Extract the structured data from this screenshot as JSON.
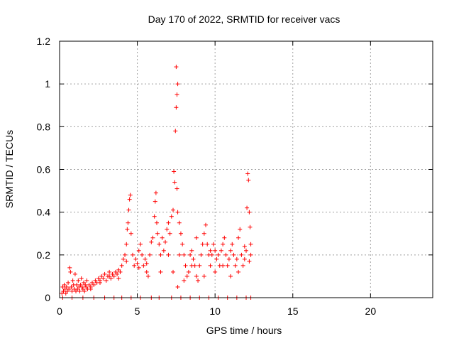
{
  "chart_data": {
    "type": "scatter",
    "title": "Day 170 of 2022, SRMTID for receiver vacs",
    "xlabel": "GPS time / hours",
    "ylabel": "SRMTID / TECUs",
    "xlim": [
      0,
      24
    ],
    "ylim": [
      0,
      1.2
    ],
    "xticks": [
      0,
      5,
      10,
      15,
      20
    ],
    "xtick_labels": [
      "0",
      "5",
      "10",
      "15",
      "20"
    ],
    "yticks": [
      0,
      0.2,
      0.4,
      0.6,
      0.8,
      1,
      1.2
    ],
    "ytick_labels": [
      "0",
      "0.2",
      "0.4",
      "0.6",
      "0.8",
      "1",
      "1.2"
    ],
    "grid": true,
    "marker": "+",
    "color": "#ff0000",
    "series": [
      {
        "name": "SRMTID",
        "points": [
          [
            0.15,
            0.02
          ],
          [
            0.2,
            0.05
          ],
          [
            0.25,
            0.03
          ],
          [
            0.3,
            0.06
          ],
          [
            0.35,
            0.04
          ],
          [
            0.4,
            0.02
          ],
          [
            0.45,
            0.05
          ],
          [
            0.5,
            0.03
          ],
          [
            0.55,
            0.07
          ],
          [
            0.6,
            0.04
          ],
          [
            0.65,
            0.14
          ],
          [
            0.7,
            0.12
          ],
          [
            0.75,
            0.05
          ],
          [
            0.8,
            0.03
          ],
          [
            0.85,
            0.08
          ],
          [
            0.9,
            0.06
          ],
          [
            0.95,
            0.04
          ],
          [
            1.0,
            0.11
          ],
          [
            1.05,
            0.03
          ],
          [
            1.1,
            0.06
          ],
          [
            1.15,
            0.04
          ],
          [
            1.2,
            0.08
          ],
          [
            1.25,
            0.05
          ],
          [
            1.3,
            0.03
          ],
          [
            1.35,
            0.06
          ],
          [
            1.4,
            0.09
          ],
          [
            1.45,
            0.05
          ],
          [
            1.5,
            0.04
          ],
          [
            1.55,
            0.07
          ],
          [
            1.6,
            0.03
          ],
          [
            1.65,
            0.06
          ],
          [
            1.7,
            0.05
          ],
          [
            1.75,
            0.08
          ],
          [
            1.8,
            0.04
          ],
          [
            1.9,
            0.06
          ],
          [
            2.0,
            0.05
          ],
          [
            2.1,
            0.07
          ],
          [
            2.2,
            0.06
          ],
          [
            2.3,
            0.08
          ],
          [
            2.4,
            0.07
          ],
          [
            2.5,
            0.09
          ],
          [
            2.6,
            0.08
          ],
          [
            2.7,
            0.1
          ],
          [
            2.8,
            0.09
          ],
          [
            2.9,
            0.11
          ],
          [
            3.0,
            0.08
          ],
          [
            3.1,
            0.1
          ],
          [
            3.2,
            0.12
          ],
          [
            3.3,
            0.09
          ],
          [
            3.4,
            0.11
          ],
          [
            3.5,
            0.1
          ],
          [
            3.6,
            0.12
          ],
          [
            3.7,
            0.11
          ],
          [
            3.8,
            0.13
          ],
          [
            3.9,
            0.12
          ],
          [
            4.0,
            0.15
          ],
          [
            4.1,
            0.18
          ],
          [
            4.2,
            0.2
          ],
          [
            4.3,
            0.25
          ],
          [
            4.35,
            0.32
          ],
          [
            4.4,
            0.35
          ],
          [
            4.45,
            0.41
          ],
          [
            4.5,
            0.46
          ],
          [
            4.55,
            0.48
          ],
          [
            4.6,
            0.3
          ],
          [
            4.7,
            0.2
          ],
          [
            4.8,
            0.15
          ],
          [
            4.9,
            0.18
          ],
          [
            5.0,
            0.16
          ],
          [
            5.1,
            0.22
          ],
          [
            5.2,
            0.25
          ],
          [
            5.3,
            0.2
          ],
          [
            5.4,
            0.15
          ],
          [
            5.5,
            0.18
          ],
          [
            5.6,
            0.12
          ],
          [
            5.7,
            0.1
          ],
          [
            5.8,
            0.2
          ],
          [
            5.9,
            0.26
          ],
          [
            6.0,
            0.28
          ],
          [
            6.1,
            0.38
          ],
          [
            6.15,
            0.45
          ],
          [
            6.2,
            0.49
          ],
          [
            6.25,
            0.35
          ],
          [
            6.3,
            0.3
          ],
          [
            6.4,
            0.25
          ],
          [
            6.5,
            0.2
          ],
          [
            6.6,
            0.28
          ],
          [
            6.7,
            0.22
          ],
          [
            6.8,
            0.26
          ],
          [
            6.9,
            0.32
          ],
          [
            7.0,
            0.35
          ],
          [
            7.1,
            0.3
          ],
          [
            7.2,
            0.38
          ],
          [
            7.3,
            0.41
          ],
          [
            7.35,
            0.59
          ],
          [
            7.4,
            0.54
          ],
          [
            7.45,
            0.78
          ],
          [
            7.5,
            0.89
          ],
          [
            7.55,
            0.95
          ],
          [
            7.6,
            1.0
          ],
          [
            7.5,
            1.08
          ],
          [
            7.55,
            0.51
          ],
          [
            7.6,
            0.4
          ],
          [
            7.7,
            0.35
          ],
          [
            7.8,
            0.3
          ],
          [
            7.9,
            0.25
          ],
          [
            8.0,
            0.2
          ],
          [
            8.1,
            0.15
          ],
          [
            8.2,
            0.1
          ],
          [
            8.3,
            0.12
          ],
          [
            8.4,
            0.2
          ],
          [
            8.5,
            0.22
          ],
          [
            8.6,
            0.18
          ],
          [
            8.7,
            0.15
          ],
          [
            8.8,
            0.1
          ],
          [
            8.9,
            0.08
          ],
          [
            9.0,
            0.15
          ],
          [
            9.1,
            0.2
          ],
          [
            9.2,
            0.25
          ],
          [
            9.3,
            0.3
          ],
          [
            9.4,
            0.34
          ],
          [
            9.5,
            0.25
          ],
          [
            9.6,
            0.2
          ],
          [
            9.7,
            0.15
          ],
          [
            9.8,
            0.2
          ],
          [
            9.9,
            0.25
          ],
          [
            10.0,
            0.22
          ],
          [
            10.1,
            0.18
          ],
          [
            10.2,
            0.2
          ],
          [
            10.3,
            0.15
          ],
          [
            10.4,
            0.22
          ],
          [
            10.5,
            0.25
          ],
          [
            10.6,
            0.28
          ],
          [
            10.7,
            0.2
          ],
          [
            10.8,
            0.15
          ],
          [
            10.9,
            0.18
          ],
          [
            11.0,
            0.22
          ],
          [
            11.1,
            0.25
          ],
          [
            11.2,
            0.2
          ],
          [
            11.3,
            0.15
          ],
          [
            11.4,
            0.18
          ],
          [
            11.5,
            0.28
          ],
          [
            11.6,
            0.32
          ],
          [
            11.7,
            0.2
          ],
          [
            11.8,
            0.15
          ],
          [
            11.9,
            0.18
          ],
          [
            12.0,
            0.22
          ],
          [
            12.05,
            0.42
          ],
          [
            12.1,
            0.58
          ],
          [
            12.15,
            0.55
          ],
          [
            12.2,
            0.4
          ],
          [
            12.25,
            0.33
          ],
          [
            12.3,
            0.25
          ],
          [
            12.3,
            0.2
          ],
          [
            0.2,
            0.0
          ],
          [
            0.8,
            0.0
          ],
          [
            1.5,
            0.0
          ],
          [
            2.2,
            0.0
          ],
          [
            2.9,
            0.0
          ],
          [
            3.5,
            0.0
          ],
          [
            4.0,
            0.0
          ],
          [
            4.6,
            0.0
          ],
          [
            5.2,
            0.0
          ],
          [
            5.9,
            0.0
          ],
          [
            6.4,
            0.0
          ],
          [
            7.2,
            0.0
          ],
          [
            7.8,
            0.0
          ],
          [
            8.4,
            0.0
          ],
          [
            9.0,
            0.0
          ],
          [
            9.6,
            0.0
          ],
          [
            10.2,
            0.0
          ],
          [
            10.8,
            0.0
          ],
          [
            11.4,
            0.0
          ],
          [
            12.0,
            0.0
          ],
          [
            12.3,
            0.0
          ],
          [
            2.0,
            0.04
          ],
          [
            2.6,
            0.07
          ],
          [
            3.2,
            0.1
          ],
          [
            3.8,
            0.09
          ],
          [
            4.3,
            0.17
          ],
          [
            5.1,
            0.14
          ],
          [
            5.6,
            0.16
          ],
          [
            6.5,
            0.12
          ],
          [
            7.0,
            0.2
          ],
          [
            7.3,
            0.12
          ],
          [
            7.6,
            0.05
          ],
          [
            7.7,
            0.2
          ],
          [
            8.0,
            0.08
          ],
          [
            8.5,
            0.15
          ],
          [
            8.8,
            0.28
          ],
          [
            9.3,
            0.1
          ],
          [
            9.7,
            0.22
          ],
          [
            10.0,
            0.12
          ],
          [
            10.5,
            0.15
          ],
          [
            11.0,
            0.1
          ],
          [
            11.5,
            0.12
          ],
          [
            11.9,
            0.24
          ],
          [
            12.2,
            0.17
          ]
        ]
      }
    ]
  }
}
